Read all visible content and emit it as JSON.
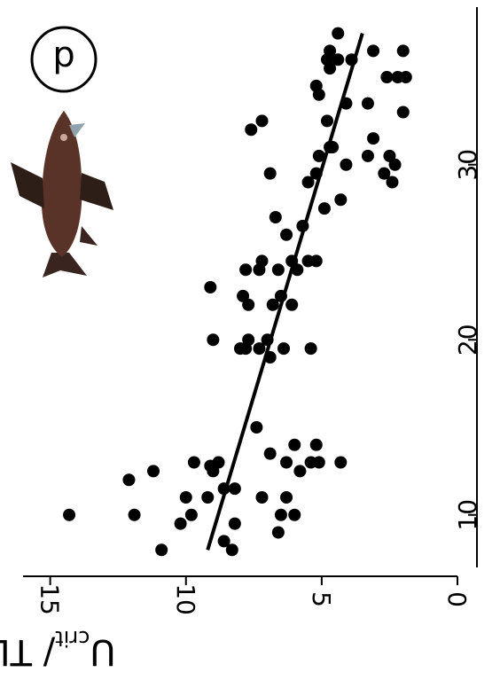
{
  "chart_data": {
    "type": "scatter",
    "title": "",
    "panel_label": "d",
    "ylabel": {
      "main": "U",
      "subscript": "crit",
      "rest": "/ TL"
    },
    "xlabel": "",
    "xlim": [
      7,
      39
    ],
    "ylim": [
      0,
      16
    ],
    "xticks": [
      {
        "value": 10,
        "label": "10"
      },
      {
        "value": 20,
        "label": "20"
      },
      {
        "value": 30,
        "label": "30"
      }
    ],
    "yticks": [
      {
        "value": 0,
        "label": "0"
      },
      {
        "value": 5,
        "label": "5"
      },
      {
        "value": 10,
        "label": "10"
      },
      {
        "value": 15,
        "label": "15"
      }
    ],
    "grid": false,
    "legend": "none",
    "points": [
      {
        "x": 10.0,
        "y": 14.3
      },
      {
        "x": 12.0,
        "y": 12.1
      },
      {
        "x": 10.0,
        "y": 11.9
      },
      {
        "x": 12.5,
        "y": 11.2
      },
      {
        "x": 8.0,
        "y": 10.9
      },
      {
        "x": 9.5,
        "y": 10.2
      },
      {
        "x": 10.0,
        "y": 9.8
      },
      {
        "x": 11.0,
        "y": 10.0
      },
      {
        "x": 11.0,
        "y": 9.2
      },
      {
        "x": 13.0,
        "y": 9.7
      },
      {
        "x": 12.5,
        "y": 9.0
      },
      {
        "x": 13.0,
        "y": 8.8
      },
      {
        "x": 12.8,
        "y": 9.1
      },
      {
        "x": 11.5,
        "y": 8.6
      },
      {
        "x": 11.5,
        "y": 8.2
      },
      {
        "x": 9.5,
        "y": 8.2
      },
      {
        "x": 8.5,
        "y": 8.6
      },
      {
        "x": 8.0,
        "y": 8.3
      },
      {
        "x": 11.0,
        "y": 7.2
      },
      {
        "x": 9.0,
        "y": 6.6
      },
      {
        "x": 10.0,
        "y": 6.5
      },
      {
        "x": 10.0,
        "y": 6.0
      },
      {
        "x": 11.0,
        "y": 6.3
      },
      {
        "x": 13.5,
        "y": 6.9
      },
      {
        "x": 14.0,
        "y": 6.0
      },
      {
        "x": 13.0,
        "y": 6.3
      },
      {
        "x": 12.5,
        "y": 5.8
      },
      {
        "x": 13.0,
        "y": 5.4
      },
      {
        "x": 13.0,
        "y": 5.1
      },
      {
        "x": 14.0,
        "y": 5.2
      },
      {
        "x": 13.0,
        "y": 4.3
      },
      {
        "x": 15.0,
        "y": 7.4
      },
      {
        "x": 19.0,
        "y": 6.9
      },
      {
        "x": 19.5,
        "y": 8.0
      },
      {
        "x": 19.5,
        "y": 7.8
      },
      {
        "x": 20.0,
        "y": 9.0
      },
      {
        "x": 20.0,
        "y": 7.7
      },
      {
        "x": 19.5,
        "y": 7.3
      },
      {
        "x": 20.0,
        "y": 7.0
      },
      {
        "x": 19.5,
        "y": 6.4
      },
      {
        "x": 19.5,
        "y": 5.4
      },
      {
        "x": 22.0,
        "y": 7.7
      },
      {
        "x": 22.0,
        "y": 6.8
      },
      {
        "x": 22.5,
        "y": 7.9
      },
      {
        "x": 22.0,
        "y": 6.1
      },
      {
        "x": 22.5,
        "y": 6.5
      },
      {
        "x": 23.0,
        "y": 9.1
      },
      {
        "x": 24.0,
        "y": 7.8
      },
      {
        "x": 24.0,
        "y": 7.3
      },
      {
        "x": 24.5,
        "y": 7.2
      },
      {
        "x": 24.0,
        "y": 6.6
      },
      {
        "x": 24.5,
        "y": 6.1
      },
      {
        "x": 24.0,
        "y": 5.9
      },
      {
        "x": 24.5,
        "y": 5.5
      },
      {
        "x": 24.5,
        "y": 5.2
      },
      {
        "x": 26.0,
        "y": 6.3
      },
      {
        "x": 26.5,
        "y": 5.7
      },
      {
        "x": 27.0,
        "y": 6.7
      },
      {
        "x": 29.5,
        "y": 6.9
      },
      {
        "x": 29.0,
        "y": 5.5
      },
      {
        "x": 29.5,
        "y": 5.2
      },
      {
        "x": 27.5,
        "y": 4.9
      },
      {
        "x": 28.0,
        "y": 4.3
      },
      {
        "x": 30.5,
        "y": 5.1
      },
      {
        "x": 30.0,
        "y": 4.1
      },
      {
        "x": 31.0,
        "y": 4.6
      },
      {
        "x": 30.5,
        "y": 3.3
      },
      {
        "x": 31.5,
        "y": 3.1
      },
      {
        "x": 29.5,
        "y": 2.7
      },
      {
        "x": 29.0,
        "y": 2.4
      },
      {
        "x": 30.0,
        "y": 2.3
      },
      {
        "x": 30.5,
        "y": 2.5
      },
      {
        "x": 31.0,
        "y": 4.7
      },
      {
        "x": 32.5,
        "y": 7.2
      },
      {
        "x": 32.0,
        "y": 7.6
      },
      {
        "x": 32.5,
        "y": 4.8
      },
      {
        "x": 33.5,
        "y": 4.1
      },
      {
        "x": 33.5,
        "y": 3.3
      },
      {
        "x": 34.0,
        "y": 5.1
      },
      {
        "x": 34.5,
        "y": 5.2
      },
      {
        "x": 33.0,
        "y": 2.0
      },
      {
        "x": 35.0,
        "y": 2.6
      },
      {
        "x": 35.0,
        "y": 2.2
      },
      {
        "x": 35.0,
        "y": 1.9
      },
      {
        "x": 35.5,
        "y": 4.7
      },
      {
        "x": 36.0,
        "y": 4.8
      },
      {
        "x": 36.5,
        "y": 4.7
      },
      {
        "x": 36.0,
        "y": 3.9
      },
      {
        "x": 36.5,
        "y": 3.1
      },
      {
        "x": 36.0,
        "y": 4.4
      },
      {
        "x": 37.5,
        "y": 4.4
      },
      {
        "x": 36.5,
        "y": 2.0
      }
    ],
    "trendline": {
      "x": [
        8,
        37.5
      ],
      "y": [
        9.2,
        3.5
      ]
    }
  }
}
